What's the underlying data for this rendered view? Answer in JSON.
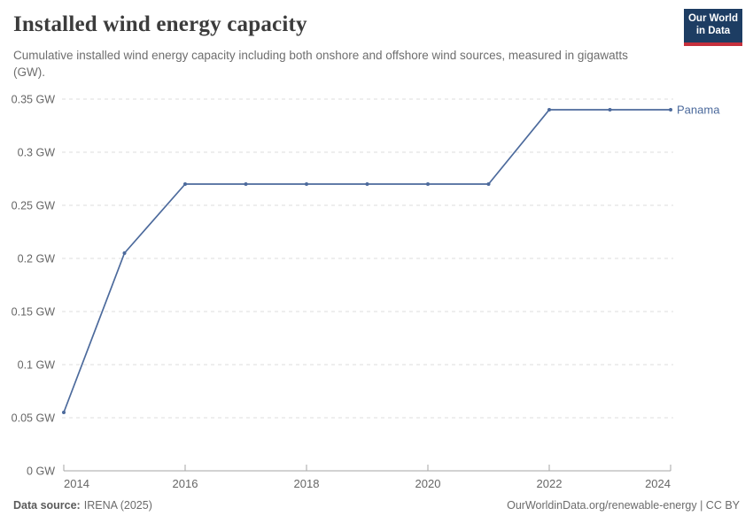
{
  "header": {
    "title": "Installed wind energy capacity",
    "subtitle": "Cumulative installed wind energy capacity including both onshore and offshore wind sources, measured in gigawatts (GW).",
    "logo": {
      "line1": "Our World",
      "line2": "in Data"
    }
  },
  "colors": {
    "line": "#4C6A9C",
    "series_label": "#4C6A9C",
    "grid": "#dddddd",
    "axis": "#a5a5a5",
    "tick_text": "#666666",
    "title_text": "#3c3c3c",
    "subtitle_text": "#6e6e6e",
    "footer_text": "#5b5b5b",
    "logo_bg": "#1d3d63",
    "logo_red": "#c5303c"
  },
  "chart_data": {
    "type": "line",
    "title": "Installed wind energy capacity",
    "unit": "GW",
    "x": [
      2014,
      2015,
      2016,
      2017,
      2018,
      2019,
      2020,
      2021,
      2022,
      2023,
      2024
    ],
    "series": [
      {
        "name": "Panama",
        "color": "#4C6A9C",
        "values": [
          0.055,
          0.205,
          0.27,
          0.27,
          0.27,
          0.27,
          0.27,
          0.27,
          0.34,
          0.34,
          0.34
        ]
      }
    ],
    "xlim": [
      2014,
      2024
    ],
    "ylim": [
      0,
      0.35
    ],
    "x_ticks": [
      {
        "value": 2014,
        "label": "2014"
      },
      {
        "value": 2016,
        "label": "2016"
      },
      {
        "value": 2018,
        "label": "2018"
      },
      {
        "value": 2020,
        "label": "2020"
      },
      {
        "value": 2022,
        "label": "2022"
      },
      {
        "value": 2024,
        "label": "2024"
      }
    ],
    "y_ticks": [
      {
        "value": 0,
        "label": "0 GW"
      },
      {
        "value": 0.05,
        "label": "0.05 GW"
      },
      {
        "value": 0.1,
        "label": "0.1 GW"
      },
      {
        "value": 0.15,
        "label": "0.15 GW"
      },
      {
        "value": 0.2,
        "label": "0.2 GW"
      },
      {
        "value": 0.25,
        "label": "0.25 GW"
      },
      {
        "value": 0.3,
        "label": "0.3 GW"
      },
      {
        "value": 0.35,
        "label": "0.35 GW"
      }
    ],
    "grid": "horizontal-dashed",
    "legend_position": "line-end-right",
    "markers": true
  },
  "footer": {
    "source_label": "Data source:",
    "source_value": "IRENA (2025)",
    "link": "OurWorldinData.org/renewable-energy",
    "separator": " | ",
    "license": "CC BY"
  }
}
